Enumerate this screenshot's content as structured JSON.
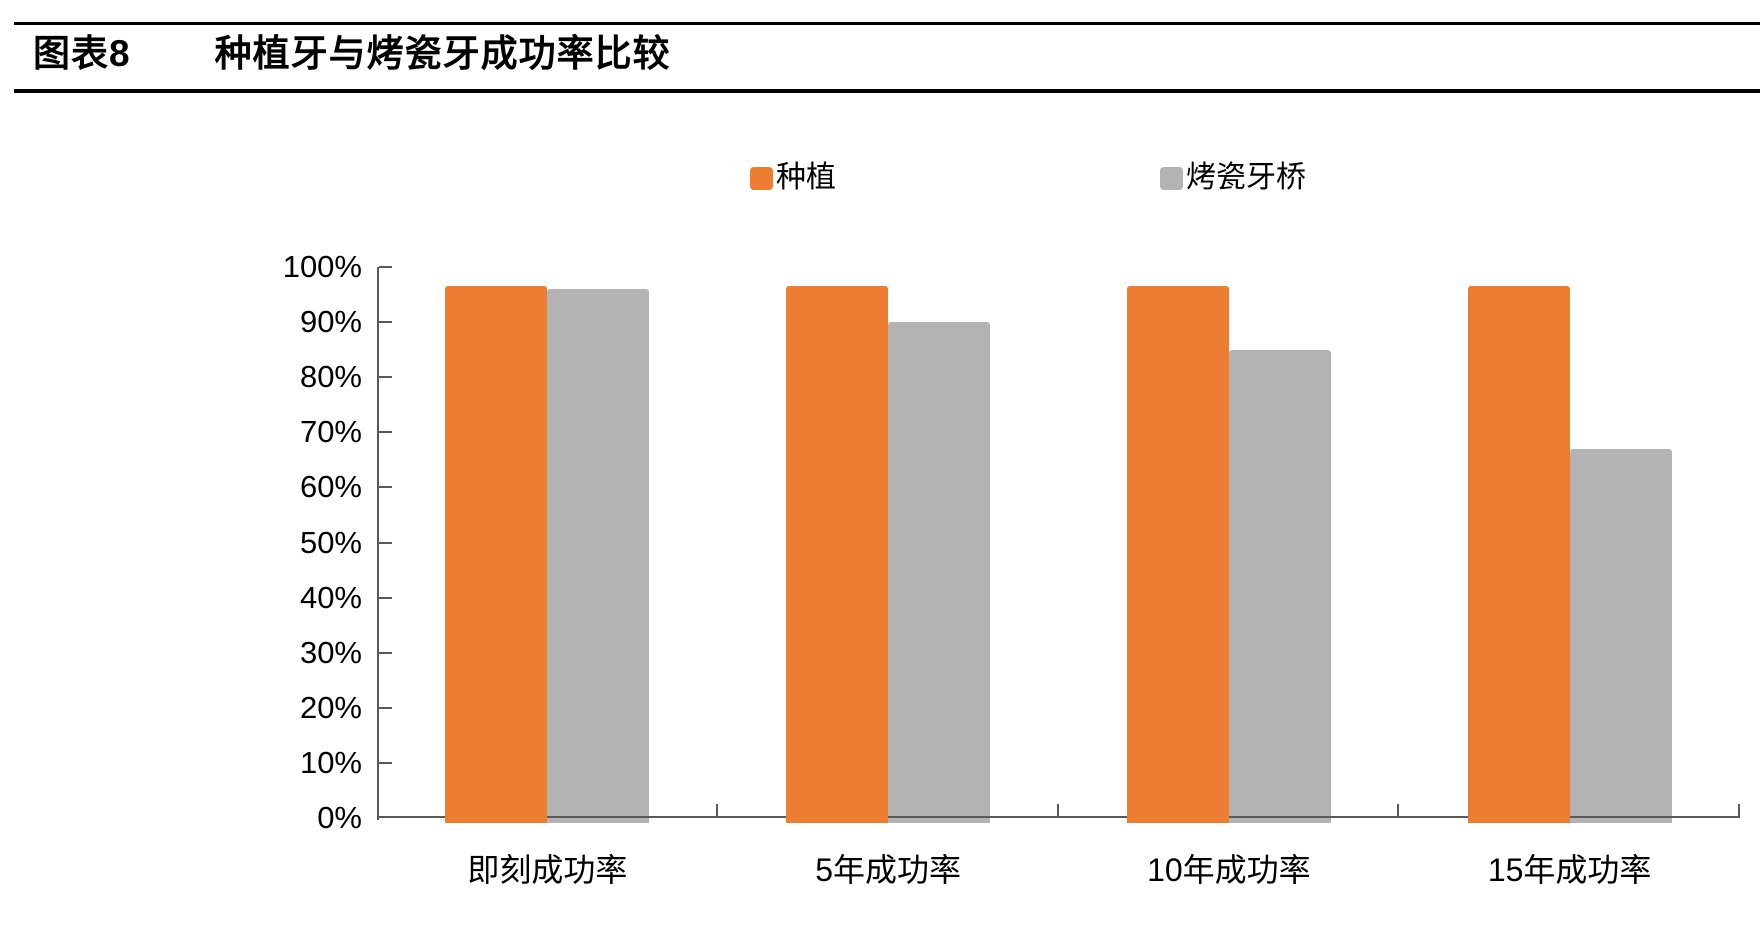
{
  "header": {
    "figure_label": "图表8",
    "title": "种植牙与烤瓷牙成功率比较"
  },
  "chart_data": {
    "type": "bar",
    "title": "种植牙与烤瓷牙成功率比较",
    "categories": [
      "即刻成功率",
      "5年成功率",
      "10年成功率",
      "15年成功率"
    ],
    "series": [
      {
        "name": "种植",
        "color": "#ED7D31",
        "values": [
          96.5,
          96.5,
          96.5,
          96.5
        ]
      },
      {
        "name": "烤瓷牙桥",
        "color": "#B3B3B3",
        "values": [
          96,
          90,
          85,
          67
        ]
      }
    ],
    "ylim": [
      0,
      100
    ],
    "yticks": [
      "100%",
      "90%",
      "80%",
      "70%",
      "60%",
      "50%",
      "40%",
      "30%",
      "20%",
      "10%",
      "0%"
    ],
    "legend_position": "top",
    "grid": false,
    "axis_color": "#595959"
  }
}
